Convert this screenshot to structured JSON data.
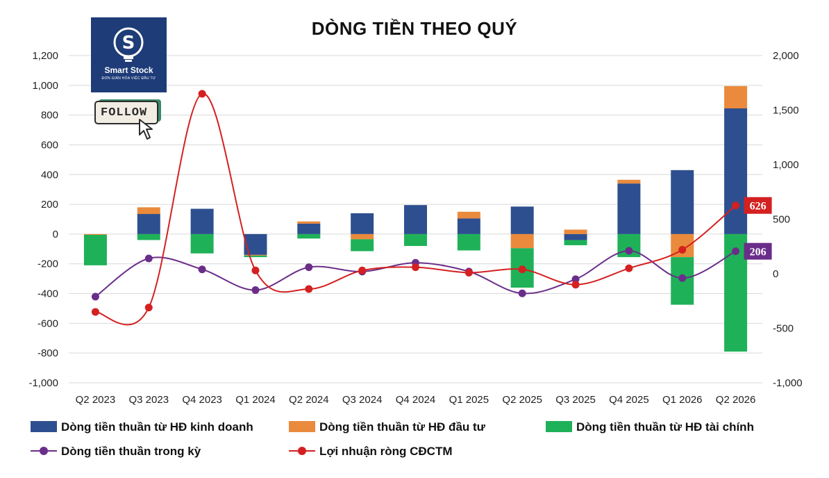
{
  "title": "DÒNG TIỀN THEO QUÝ",
  "logo": {
    "name": "Smart Stock",
    "tagline": "ĐƠN GIẢN HÓA VIỆC ĐẦU TƯ",
    "letter": "S",
    "follow_label": "FOLLOW"
  },
  "colors": {
    "operating": "#2e4f8f",
    "investing": "#ea8a3c",
    "financing": "#1fb158",
    "net_cash": "#6a2e8a",
    "net_profit": "#d42020",
    "grid": "#d9d9d9"
  },
  "chart_data": {
    "type": "bar",
    "title": "DÒNG TIỀN THEO QUÝ",
    "categories": [
      "Q2 2023",
      "Q3 2023",
      "Q4 2023",
      "Q1 2024",
      "Q2 2024",
      "Q3 2024",
      "Q4 2024",
      "Q1 2025",
      "Q2 2025",
      "Q3 2025",
      "Q4 2025",
      "Q1 2026",
      "Q2 2026"
    ],
    "y_left": {
      "ylim": [
        -1000,
        1200
      ],
      "ticks": [
        "-1,000",
        "-800",
        "-600",
        "-400",
        "-200",
        "0",
        "200",
        "400",
        "600",
        "800",
        "1,000",
        "1,200"
      ]
    },
    "y_right": {
      "ylim": [
        -1000,
        2000
      ],
      "ticks": [
        "-1,000",
        "-500",
        "0",
        "500",
        "1,000",
        "1,500",
        "2,000"
      ]
    },
    "grid": true,
    "legend_position": "bottom",
    "series": [
      {
        "name": "Dòng tiền thuần từ HĐ kinh doanh",
        "kind": "stacked-bar",
        "axis": "left",
        "color_key": "operating",
        "values": [
          0,
          135,
          170,
          -140,
          70,
          140,
          195,
          105,
          185,
          -40,
          340,
          430,
          845
        ]
      },
      {
        "name": "Dòng tiền thuần từ HĐ đầu tư",
        "kind": "stacked-bar",
        "axis": "left",
        "color_key": "investing",
        "values": [
          -5,
          45,
          0,
          -5,
          15,
          -35,
          0,
          45,
          -95,
          30,
          25,
          -155,
          150
        ]
      },
      {
        "name": "Dòng tiền thuần từ HĐ tài chính",
        "kind": "stacked-bar",
        "axis": "left",
        "color_key": "financing",
        "values": [
          -205,
          -40,
          -130,
          -10,
          -30,
          -80,
          -80,
          -110,
          -265,
          -35,
          -155,
          -320,
          -790
        ]
      },
      {
        "name": "Dòng tiền thuần trong kỳ",
        "kind": "line",
        "axis": "right",
        "color_key": "net_cash",
        "values": [
          -210,
          140,
          40,
          -150,
          60,
          20,
          100,
          20,
          -180,
          -50,
          210,
          -40,
          206
        ]
      },
      {
        "name": "Lợi nhuận ròng CĐCTM",
        "kind": "line",
        "axis": "right",
        "color_key": "net_profit",
        "values": [
          -350,
          -310,
          1650,
          30,
          -140,
          30,
          60,
          10,
          40,
          -100,
          50,
          220,
          626
        ]
      }
    ],
    "annotations": [
      {
        "series": "Lợi nhuận ròng CĐCTM",
        "category": "Q2 2026",
        "text": "626"
      },
      {
        "series": "Dòng tiền thuần trong kỳ",
        "category": "Q2 2026",
        "text": "206"
      }
    ]
  }
}
